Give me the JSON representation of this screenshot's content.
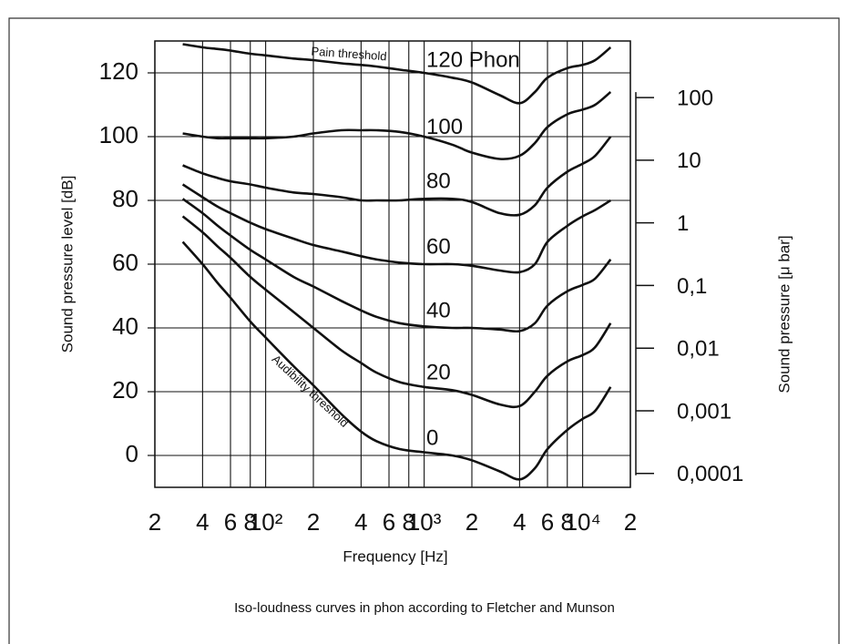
{
  "chart_data": {
    "type": "line",
    "x_label": "Frequency [Hz]",
    "y_label": "Sound pressure level [dB]",
    "y2_label": "Sound pressure [μ bar]",
    "caption": "Iso-loudness curves in phon according to Fletcher and Munson",
    "annotations": [
      "Pain threshold",
      "Audibility threshold"
    ],
    "xscale": "log",
    "y2scale": "log",
    "grid": true,
    "xlim": [
      20,
      20000
    ],
    "xticks": [
      {
        "value": 20,
        "label": "2"
      },
      {
        "value": 40,
        "label": "4"
      },
      {
        "value": 60,
        "label": "6"
      },
      {
        "value": 80,
        "label": "8"
      },
      {
        "value": 100,
        "label": "10²"
      },
      {
        "value": 200,
        "label": "2"
      },
      {
        "value": 400,
        "label": "4"
      },
      {
        "value": 600,
        "label": "6"
      },
      {
        "value": 800,
        "label": "8"
      },
      {
        "value": 1000,
        "label": "10³"
      },
      {
        "value": 2000,
        "label": "2"
      },
      {
        "value": 4000,
        "label": "4"
      },
      {
        "value": 6000,
        "label": "6"
      },
      {
        "value": 8000,
        "label": "8"
      },
      {
        "value": 10000,
        "label": "10⁴"
      },
      {
        "value": 20000,
        "label": "2"
      }
    ],
    "ylim": [
      -10,
      130
    ],
    "yticks": [
      0,
      20,
      40,
      60,
      80,
      100,
      120
    ],
    "y2lim": [
      6e-05,
      800
    ],
    "y2ticks": [
      100,
      10,
      1,
      {
        "value": 0.1,
        "label": "0,1"
      },
      {
        "value": 0.01,
        "label": "0,01"
      },
      {
        "value": 0.001,
        "label": "0,001"
      },
      {
        "value": 0.0001,
        "label": "0,0001"
      }
    ],
    "x": [
      30,
      40,
      50,
      60,
      80,
      100,
      150,
      200,
      300,
      400,
      500,
      700,
      1000,
      1500,
      2000,
      3000,
      4000,
      5000,
      6000,
      8000,
      10000,
      12000,
      15000
    ],
    "series": [
      {
        "name": "120 Phon",
        "color": "#111111",
        "values": [
          129,
          128,
          127.5,
          127,
          126,
          125.5,
          124.5,
          124,
          123,
          122.5,
          122,
          121,
          120,
          118.5,
          117,
          113,
          110.5,
          114,
          118.5,
          121.5,
          122.5,
          124,
          128
        ]
      },
      {
        "name": "100",
        "color": "#111111",
        "values": [
          101,
          100,
          99.5,
          99.5,
          99.5,
          99.5,
          100,
          101,
          102,
          102,
          102,
          101.5,
          100,
          97.5,
          95,
          93,
          94,
          98,
          103,
          107,
          108.5,
          110,
          114
        ]
      },
      {
        "name": "80",
        "color": "#111111",
        "values": [
          91,
          88.5,
          87,
          86,
          85,
          84,
          82.5,
          82,
          81,
          80,
          80,
          80,
          80.5,
          80.5,
          79.5,
          76,
          75.5,
          78.5,
          84,
          89,
          91.5,
          94,
          100
        ]
      },
      {
        "name": "60",
        "color": "#111111",
        "values": [
          85,
          81,
          78,
          76,
          73,
          71,
          68,
          66,
          64,
          62.5,
          61.5,
          60.5,
          60,
          60,
          59.5,
          58,
          57.5,
          60,
          67,
          72,
          75,
          77,
          80
        ]
      },
      {
        "name": "40",
        "color": "#111111",
        "values": [
          80.5,
          76,
          72,
          69,
          64.5,
          61.5,
          56,
          53,
          48.5,
          45.5,
          43.5,
          41.5,
          40.5,
          40,
          40,
          39.5,
          39,
          41.5,
          47,
          51.5,
          53.5,
          55.5,
          61.5
        ]
      },
      {
        "name": "20",
        "color": "#111111",
        "values": [
          75,
          70,
          65.5,
          62,
          56,
          52,
          45,
          40,
          33,
          29,
          26,
          23,
          21.5,
          20.5,
          19,
          16,
          15.5,
          20,
          25,
          29.5,
          31.5,
          34,
          41.5
        ]
      },
      {
        "name": "0",
        "color": "#111111",
        "values": [
          67,
          60,
          54,
          49.5,
          42,
          37,
          28,
          22,
          13,
          7.5,
          4.5,
          2,
          1,
          0,
          -1.5,
          -5,
          -7.5,
          -4,
          2,
          8,
          11.5,
          14,
          21.5
        ]
      }
    ]
  }
}
